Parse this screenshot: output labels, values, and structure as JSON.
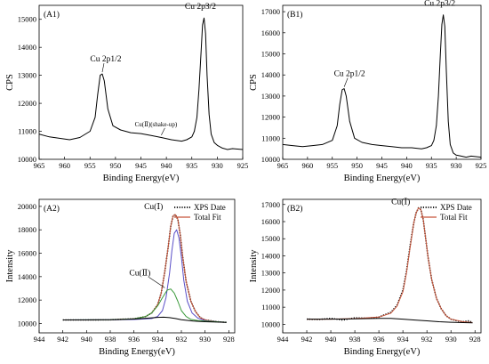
{
  "panels": [
    {
      "panel_label": "(A1)",
      "chart_data": {
        "type": "line",
        "xlabel": "Binding Energy(eV)",
        "ylabel": "CPS",
        "xlim": [
          965,
          925
        ],
        "ylim": [
          10000,
          15500
        ],
        "x_ticks": [
          965,
          960,
          955,
          950,
          945,
          940,
          935,
          930,
          925
        ],
        "y_ticks": [
          10000,
          11000,
          12000,
          13000,
          14000,
          15000
        ],
        "series": [
          {
            "color": "#000000",
            "x": [
              965,
              963,
              961,
              959,
              957,
              955,
              954,
              953.5,
              953,
              952.6,
              952.2,
              951.5,
              950.5,
              949,
              947,
              945,
              943,
              941,
              939,
              937,
              936,
              935,
              934.5,
              934,
              933.6,
              933.2,
              932.9,
              932.6,
              932.3,
              932,
              931.6,
              931.2,
              930.6,
              930,
              929,
              928,
              927,
              925
            ],
            "y": [
              10900,
              10800,
              10750,
              10700,
              10780,
              11000,
              11500,
              12300,
              13000,
              13050,
              12800,
              11800,
              11200,
              11050,
              10950,
              10920,
              10850,
              10780,
              10700,
              10650,
              10700,
              10800,
              11000,
              11500,
              12500,
              13800,
              14800,
              15050,
              14500,
              13000,
              11600,
              10900,
              10600,
              10500,
              10400,
              10350,
              10380,
              10350
            ]
          }
        ],
        "annotations": [
          {
            "text": "Cu 2p3/2",
            "x": 932.6,
            "y": 15050
          },
          {
            "text": "Cu 2p1/2",
            "x": 952.6,
            "y": 13050
          },
          {
            "text": "Cu(Ⅱ)(shake-up)",
            "x": 941,
            "y": 10800
          }
        ]
      }
    },
    {
      "panel_label": "(B1)",
      "chart_data": {
        "type": "line",
        "xlabel": "Binding Energy(eV)",
        "ylabel": "CPS",
        "xlim": [
          965,
          925
        ],
        "ylim": [
          10000,
          17300
        ],
        "x_ticks": [
          965,
          960,
          955,
          950,
          945,
          940,
          935,
          930,
          925
        ],
        "y_ticks": [
          10000,
          11000,
          12000,
          13000,
          14000,
          15000,
          16000,
          17000
        ],
        "series": [
          {
            "color": "#000000",
            "x": [
              965,
              963,
              961,
              959,
              957,
              955,
              954,
              953.5,
              953,
              952.6,
              952.2,
              951.5,
              950.5,
              949,
              947,
              945,
              943,
              941,
              939,
              937,
              936,
              935,
              934.5,
              934,
              933.6,
              933.2,
              932.9,
              932.6,
              932.3,
              932,
              931.6,
              931.2,
              930.6,
              930,
              929,
              928,
              927,
              925
            ],
            "y": [
              10700,
              10650,
              10600,
              10650,
              10700,
              10900,
              11600,
              12600,
              13300,
              13350,
              13000,
              11800,
              11000,
              10800,
              10700,
              10650,
              10600,
              10550,
              10550,
              10500,
              10550,
              10650,
              10900,
              11600,
              13000,
              15000,
              16400,
              16850,
              16300,
              14200,
              11800,
              10700,
              10300,
              10200,
              10150,
              10100,
              10150,
              10100
            ]
          }
        ],
        "annotations": [
          {
            "text": "Cu 2p3/2",
            "x": 932.6,
            "y": 16850
          },
          {
            "text": "Cu 2p1/2",
            "x": 952.6,
            "y": 13350
          }
        ]
      }
    },
    {
      "panel_label": "(A2)",
      "chart_data": {
        "type": "line",
        "xlabel": "Binding Energy(eV)",
        "ylabel": "Intensity",
        "xlim": [
          944,
          927.5
        ],
        "ylim": [
          9200,
          20600
        ],
        "x_ticks": [
          944,
          942,
          940,
          938,
          936,
          934,
          932,
          930,
          928
        ],
        "y_ticks": [
          10000,
          12000,
          14000,
          16000,
          18000,
          20000
        ],
        "legend": {
          "position": "top-right",
          "entries": [
            "XPS Date",
            "Total Fit"
          ]
        },
        "series": [
          {
            "name": "XPS Date",
            "color": "#000000",
            "style": "dotted",
            "x": [
              942,
              940,
              938,
              936,
              935,
              934.5,
              934,
              933.7,
              933.4,
              933.1,
              932.9,
              932.7,
              932.5,
              932.3,
              932.1,
              931.9,
              931.6,
              931.2,
              930.8,
              930.4,
              930,
              929,
              928.2
            ],
            "y": [
              10300,
              10300,
              10320,
              10400,
              10600,
              10900,
              11600,
              12600,
              14400,
              16600,
              18300,
              19200,
              19300,
              18900,
              17600,
              15800,
              13600,
              11900,
              11000,
              10500,
              10300,
              10150,
              10100
            ]
          },
          {
            "name": "Total Fit",
            "color": "#c8553a",
            "style": "solid",
            "x": [
              942,
              940,
              938,
              936,
              935,
              934.5,
              934,
              933.7,
              933.4,
              933.1,
              932.9,
              932.7,
              932.5,
              932.3,
              932.1,
              931.9,
              931.6,
              931.2,
              930.8,
              930.4,
              930,
              929,
              928.2
            ],
            "y": [
              10300,
              10300,
              10320,
              10400,
              10600,
              10900,
              11600,
              12600,
              14400,
              16600,
              18300,
              19200,
              19300,
              18900,
              17600,
              15800,
              13600,
              11900,
              11000,
              10500,
              10300,
              10150,
              10100
            ]
          },
          {
            "color": "#5a4fc8",
            "style": "solid",
            "x": [
              942,
              938,
              936,
              934.5,
              934,
              933.6,
              933.3,
              933,
              932.8,
              932.6,
              932.4,
              932.2,
              932,
              931.8,
              931.5,
              931.1,
              930.6,
              930,
              929,
              928.2
            ],
            "y": [
              10300,
              10320,
              10340,
              10420,
              10600,
              11100,
              12200,
              14300,
              16200,
              17700,
              18000,
              17300,
              15700,
              13700,
              11900,
              10900,
              10450,
              10250,
              10150,
              10100
            ]
          },
          {
            "color": "#3a9a3a",
            "style": "solid",
            "x": [
              942,
              938,
              936,
              935,
              934.5,
              934,
              933.6,
              933.2,
              932.9,
              932.6,
              932.3,
              932,
              931.6,
              931.2,
              930.6,
              930,
              929,
              928.2
            ],
            "y": [
              10300,
              10320,
              10400,
              10600,
              10900,
              11500,
              12200,
              12850,
              12950,
              12600,
              11900,
              11100,
              10600,
              10350,
              10250,
              10200,
              10150,
              10100
            ]
          },
          {
            "color": "#000000",
            "style": "solid",
            "x": [
              942,
              940,
              938,
              936,
              935,
              934,
              933.5,
              933,
              932.5,
              932,
              931,
              930,
              929,
              928.2
            ],
            "y": [
              10300,
              10300,
              10320,
              10380,
              10450,
              10520,
              10540,
              10500,
              10420,
              10320,
              10200,
              10150,
              10120,
              10100
            ]
          }
        ],
        "annotations": [
          {
            "text": "Cu(Ⅰ)",
            "x": 932.7,
            "y": 19300
          },
          {
            "text": "Cu(Ⅱ)",
            "x": 933.4,
            "y": 12900
          }
        ]
      }
    },
    {
      "panel_label": "(B2)",
      "chart_data": {
        "type": "line",
        "xlabel": "Binding Energy(eV)",
        "ylabel": "Intensity",
        "xlim": [
          944,
          927.5
        ],
        "ylim": [
          9500,
          17300
        ],
        "x_ticks": [
          944,
          942,
          940,
          938,
          936,
          934,
          932,
          930,
          928
        ],
        "y_ticks": [
          10000,
          11000,
          12000,
          13000,
          14000,
          15000,
          16000,
          17000
        ],
        "legend": {
          "position": "top-right",
          "entries": [
            "XPS Date",
            "Total Fit"
          ]
        },
        "series": [
          {
            "name": "XPS Date",
            "color": "#000000",
            "style": "dotted",
            "x": [
              942,
              941,
              940,
              939,
              938,
              937,
              936,
              935,
              934.5,
              934,
              933.7,
              933.4,
              933.1,
              932.9,
              932.7,
              932.5,
              932.3,
              932.1,
              931.9,
              931.6,
              931.2,
              930.8,
              930.4,
              930,
              929.5,
              929,
              928.5,
              928.2
            ],
            "y": [
              10300,
              10280,
              10350,
              10250,
              10380,
              10350,
              10420,
              10700,
              11100,
              12000,
              13100,
              14600,
              15900,
              16500,
              16800,
              16700,
              16100,
              15000,
              13900,
              12600,
              11500,
              10900,
              10500,
              10300,
              10200,
              10150,
              10200,
              10100
            ]
          },
          {
            "name": "Total Fit",
            "color": "#c8553a",
            "style": "solid",
            "x": [
              942,
              940,
              938,
              936,
              935,
              934.5,
              934,
              933.7,
              933.4,
              933.1,
              932.9,
              932.7,
              932.5,
              932.3,
              932.1,
              931.9,
              931.6,
              931.2,
              930.8,
              930.4,
              930,
              929,
              928.2
            ],
            "y": [
              10300,
              10300,
              10330,
              10420,
              10650,
              11050,
              11900,
              13000,
              14500,
              15900,
              16500,
              16800,
              16700,
              16100,
              15000,
              13900,
              12600,
              11500,
              10900,
              10500,
              10300,
              10150,
              10100
            ]
          },
          {
            "color": "#000000",
            "style": "solid",
            "x": [
              942,
              940,
              938,
              936,
              935,
              934,
              933,
              932,
              931,
              930,
              929,
              928.2
            ],
            "y": [
              10300,
              10300,
              10320,
              10350,
              10340,
              10300,
              10250,
              10200,
              10150,
              10120,
              10100,
              10080
            ]
          }
        ],
        "annotations": [
          {
            "text": "Cu(Ⅰ)",
            "x": 932.7,
            "y": 16800
          }
        ]
      }
    }
  ]
}
